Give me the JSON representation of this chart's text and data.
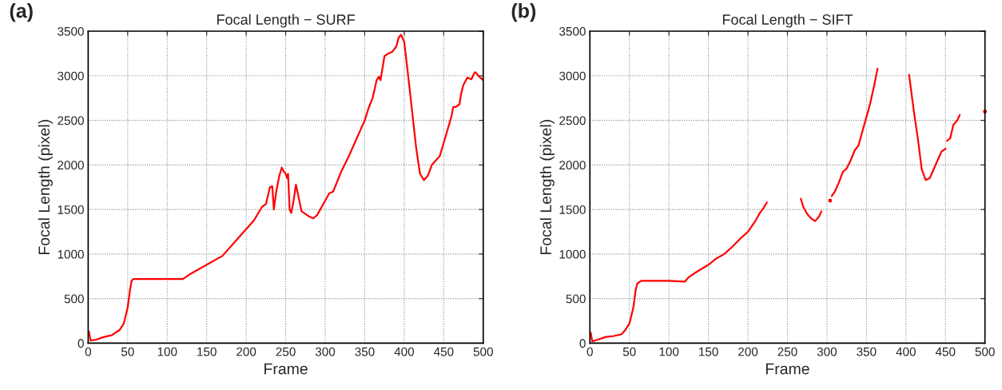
{
  "chart_data": [
    {
      "type": "line",
      "title": "Focal Length − SURF",
      "xlabel": "Frame",
      "ylabel": "Focal Length (pixel)",
      "annotations": [
        "(a)"
      ],
      "xlim": [
        0,
        500
      ],
      "ylim": [
        0,
        3500
      ],
      "xticks": [
        0,
        50,
        100,
        150,
        200,
        250,
        300,
        350,
        400,
        450,
        500
      ],
      "yticks": [
        0,
        500,
        1000,
        1500,
        2000,
        2500,
        3000,
        3500
      ],
      "grid": true,
      "series": [
        {
          "color": "#ff0000",
          "x": [
            1,
            3,
            10,
            20,
            30,
            40,
            45,
            50,
            53,
            55,
            57,
            100,
            120,
            130,
            150,
            170,
            190,
            200,
            210,
            220,
            225,
            230,
            233,
            235,
            238,
            242,
            245,
            248,
            250,
            252,
            253,
            255,
            257,
            260,
            263,
            266,
            270,
            280,
            285,
            290,
            300,
            305,
            310,
            320,
            330,
            340,
            350,
            355,
            360,
            365,
            368,
            370,
            375,
            380,
            385,
            390,
            393,
            396,
            400,
            405,
            410,
            415,
            420,
            425,
            430,
            435,
            445,
            450,
            455,
            460,
            462,
            465,
            470,
            472,
            475,
            480,
            485,
            488,
            490,
            495,
            500
          ],
          "values": [
            130,
            30,
            40,
            70,
            90,
            150,
            220,
            400,
            600,
            700,
            720,
            720,
            720,
            780,
            880,
            980,
            1180,
            1280,
            1380,
            1530,
            1560,
            1750,
            1760,
            1500,
            1700,
            1880,
            1970,
            1920,
            1900,
            1850,
            1900,
            1500,
            1460,
            1600,
            1780,
            1650,
            1480,
            1420,
            1400,
            1440,
            1600,
            1680,
            1700,
            1920,
            2100,
            2300,
            2500,
            2640,
            2750,
            2950,
            2990,
            2950,
            3220,
            3250,
            3270,
            3330,
            3430,
            3460,
            3380,
            3000,
            2600,
            2200,
            1900,
            1830,
            1880,
            2000,
            2100,
            2250,
            2400,
            2550,
            2650,
            2650,
            2680,
            2800,
            2900,
            2980,
            2960,
            3020,
            3040,
            2990,
            2950
          ]
        }
      ]
    },
    {
      "type": "line",
      "title": "Focal Length − SIFT",
      "xlabel": "Frame",
      "ylabel": "Focal Length (pixel)",
      "annotations": [
        "(b)"
      ],
      "xlim": [
        0,
        500
      ],
      "ylim": [
        0,
        3500
      ],
      "xticks": [
        0,
        50,
        100,
        150,
        200,
        250,
        300,
        350,
        400,
        450,
        500
      ],
      "yticks": [
        0,
        500,
        1000,
        1500,
        2000,
        2500,
        3000,
        3500
      ],
      "grid": true,
      "series": [
        {
          "color": "#ff0000",
          "x": [
            1,
            3,
            10,
            20,
            30,
            40,
            45,
            50,
            55,
            58,
            60,
            65,
            80,
            100,
            120,
            125,
            135,
            150,
            160,
            170,
            180,
            190,
            200,
            210,
            215,
            220,
            224,
            245,
            267,
            270,
            275,
            280,
            285,
            290,
            293,
            299,
            304,
            305,
            306,
            310,
            315,
            320,
            325,
            330,
            335,
            340,
            345,
            350,
            352,
            355,
            360,
            364,
            384,
            404,
            410,
            415,
            420,
            425,
            430,
            435,
            440,
            445,
            450,
            451,
            452,
            456,
            460,
            465,
            468,
            484,
            500
          ],
          "values": [
            120,
            20,
            40,
            70,
            80,
            100,
            150,
            220,
            400,
            600,
            670,
            700,
            700,
            700,
            690,
            740,
            800,
            880,
            950,
            1000,
            1080,
            1170,
            1250,
            1380,
            1460,
            1520,
            1580,
            null,
            1620,
            1530,
            1450,
            1400,
            1370,
            1420,
            1480,
            null,
            1600,
            null,
            1650,
            1700,
            1800,
            1920,
            1960,
            2050,
            2160,
            2220,
            2380,
            2540,
            2600,
            2700,
            2900,
            3080,
            null,
            3010,
            2600,
            2300,
            1950,
            1830,
            1850,
            1950,
            2050,
            2150,
            2180,
            null,
            2270,
            2300,
            2450,
            2500,
            2560,
            null,
            2600
          ]
        }
      ]
    }
  ]
}
